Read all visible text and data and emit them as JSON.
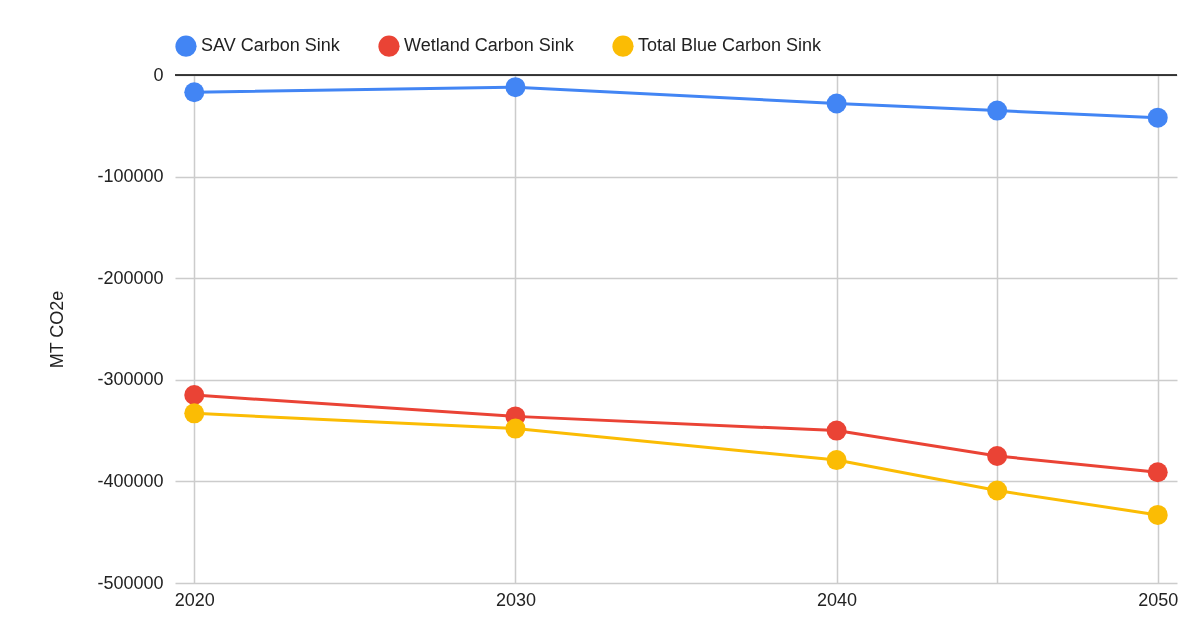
{
  "chart_data": {
    "type": "line",
    "ylabel": "MT CO2e",
    "x": [
      2020,
      2030,
      2040,
      2045,
      2050
    ],
    "series": [
      {
        "name": "SAV Carbon Sink",
        "color": "#4285f4",
        "values": [
          -17000,
          -12000,
          -28000,
          -35000,
          -42000
        ]
      },
      {
        "name": "Wetland Carbon Sink",
        "color": "#ea4335",
        "values": [
          -315000,
          -336000,
          -350000,
          -375000,
          -391000
        ]
      },
      {
        "name": "Total Blue Carbon Sink",
        "color": "#fbbc04",
        "values": [
          -333000,
          -348000,
          -379000,
          -409000,
          -433000
        ]
      }
    ],
    "xlim": [
      2019.4,
      2050.6
    ],
    "xticks": [
      2020,
      2030,
      2040,
      {
        "value": 2045,
        "label": null
      },
      2050
    ],
    "ylim": [
      -500000,
      0
    ],
    "yticks": [
      -500000,
      -400000,
      -300000,
      -200000,
      -100000,
      0
    ],
    "ref_lines": [
      {
        "axis": "y",
        "value": 0,
        "color": "#000000"
      }
    ],
    "grid": true,
    "legend": "top",
    "marker": "circle",
    "line_style": "solid"
  }
}
